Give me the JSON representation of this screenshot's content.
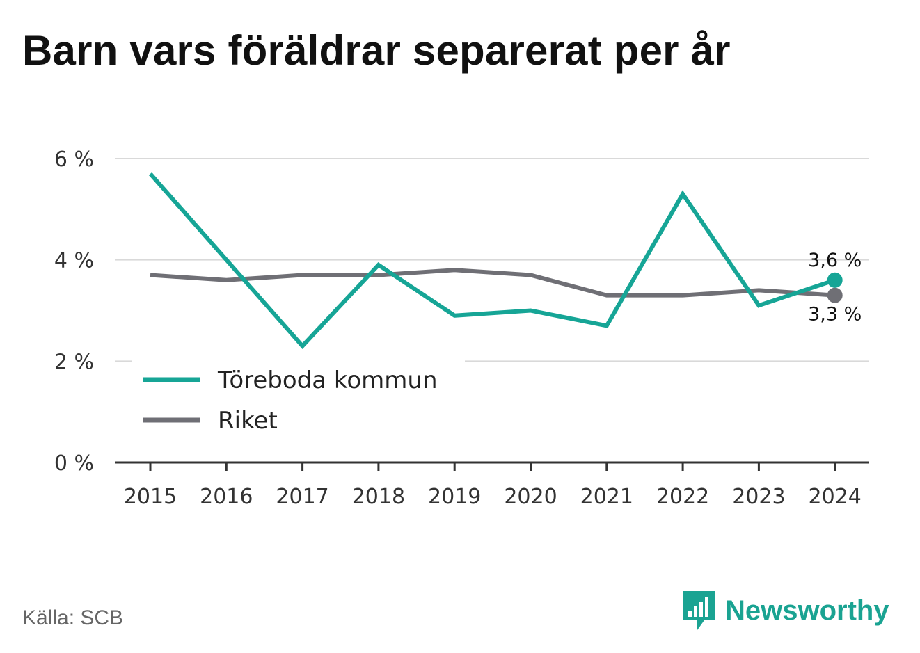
{
  "title": "Barn vars föräldrar separerat per år",
  "source": "Källa: SCB",
  "brand": "Newsworthy",
  "icons": {
    "brand_logo": "bar-chart-speech-bubble-icon"
  },
  "colors": {
    "primary": "#16a596",
    "secondary": "#6f6f75",
    "brand": "#1aa392",
    "grid": "#d9d9d9",
    "axis": "#333333"
  },
  "chart_data": {
    "type": "line",
    "x": [
      "2015",
      "2016",
      "2017",
      "2018",
      "2019",
      "2020",
      "2021",
      "2022",
      "2023",
      "2024"
    ],
    "series": [
      {
        "name": "Töreboda kommun",
        "color": "#16a596",
        "values": [
          5.7,
          4.0,
          2.3,
          3.9,
          2.9,
          3.0,
          2.7,
          5.3,
          3.1,
          3.6
        ]
      },
      {
        "name": "Riket",
        "color": "#6f6f75",
        "values": [
          3.7,
          3.6,
          3.7,
          3.7,
          3.8,
          3.7,
          3.3,
          3.3,
          3.4,
          3.3
        ]
      }
    ],
    "yticks": [
      0,
      2,
      4,
      6
    ],
    "ytick_labels": [
      "0 %",
      "2 %",
      "4 %",
      "6 %"
    ],
    "ylim": [
      0,
      6
    ],
    "end_labels": [
      "3,6 %",
      "3,3 %"
    ],
    "grid": true,
    "legend_position": "bottom-left"
  }
}
